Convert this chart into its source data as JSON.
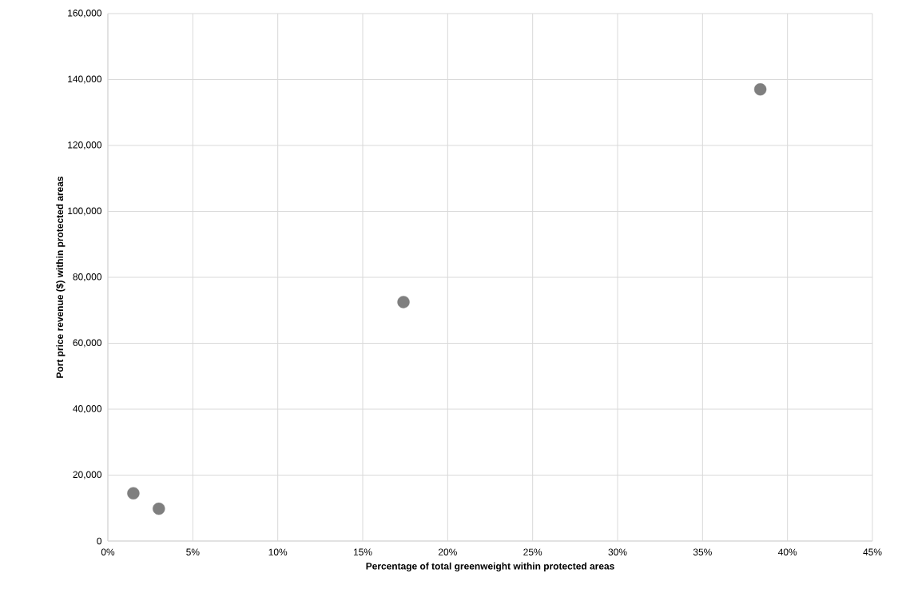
{
  "chart_data": {
    "type": "scatter",
    "xlabel": "Percentage of total greenweight within protected areas",
    "ylabel": "Port price revenue ($) within protected areas",
    "x": [
      1.5,
      3.0,
      17.4,
      38.4
    ],
    "values": [
      14500,
      9800,
      72500,
      137000
    ],
    "color": "#7f7f7f",
    "marker": "circle",
    "grid": true,
    "xlim": [
      0,
      45
    ],
    "ylim": [
      0,
      160000
    ],
    "xticks": [
      {
        "value": 0,
        "label": "0%"
      },
      {
        "value": 5,
        "label": "5%"
      },
      {
        "value": 10,
        "label": "10%"
      },
      {
        "value": 15,
        "label": "15%"
      },
      {
        "value": 20,
        "label": "20%"
      },
      {
        "value": 25,
        "label": "25%"
      },
      {
        "value": 30,
        "label": "30%"
      },
      {
        "value": 35,
        "label": "35%"
      },
      {
        "value": 40,
        "label": "40%"
      },
      {
        "value": 45,
        "label": "45%"
      }
    ],
    "yticks": [
      0,
      {
        "value": 20000,
        "label": "20,000"
      },
      {
        "value": 40000,
        "label": "40,000"
      },
      {
        "value": 60000,
        "label": "60,000"
      },
      {
        "value": 80000,
        "label": "80,000"
      },
      {
        "value": 100000,
        "label": "100,000"
      },
      {
        "value": 120000,
        "label": "120,000"
      },
      {
        "value": 140000,
        "label": "140,000"
      },
      {
        "value": 160000,
        "label": "160,000"
      }
    ]
  }
}
